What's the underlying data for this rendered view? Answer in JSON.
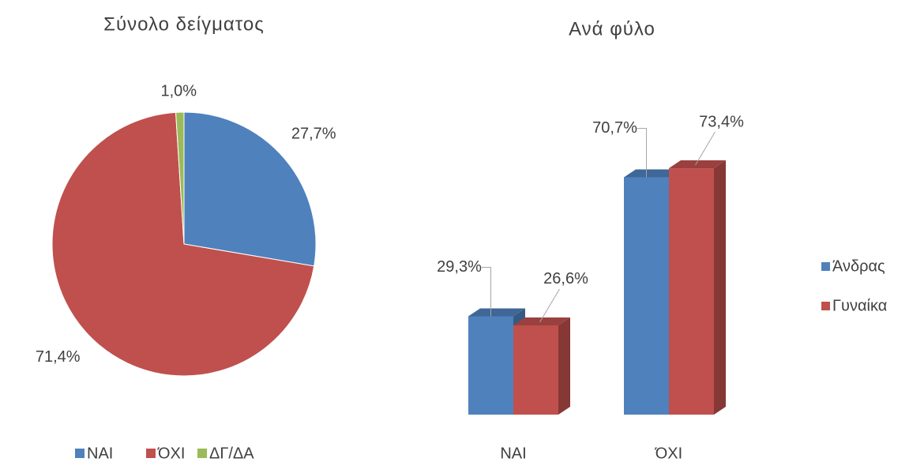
{
  "chart_data": [
    {
      "type": "pie",
      "title": "Σύνολο δείγματος",
      "categories": [
        "ΝΑΙ",
        "ΌΧΙ",
        "ΔΓ/ΔΑ"
      ],
      "values": [
        27.7,
        71.4,
        1.0
      ],
      "value_labels": [
        "27,7%",
        "71,4%",
        "1,0%"
      ],
      "colors": [
        "#4f81bd",
        "#c0504d",
        "#9bbb59"
      ],
      "legend": "bottom"
    },
    {
      "type": "bar3d",
      "title": "Ανά φύλο",
      "categories": [
        "ΝΑΙ",
        "ΌΧΙ"
      ],
      "series": [
        {
          "name": "Άνδρας",
          "color": "#4f81bd",
          "values": [
            29.3,
            70.7
          ],
          "value_labels": [
            "29,3%",
            "70,7%"
          ]
        },
        {
          "name": "Γυναίκα",
          "color": "#c0504d",
          "values": [
            26.6,
            73.4
          ],
          "value_labels": [
            "26,6%",
            "73,4%"
          ]
        }
      ],
      "legend": "right"
    }
  ]
}
